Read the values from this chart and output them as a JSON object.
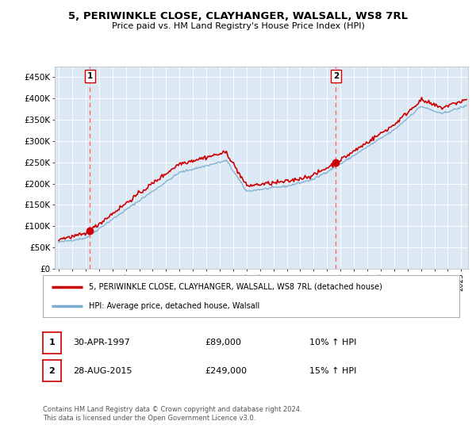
{
  "title": "5, PERIWINKLE CLOSE, CLAYHANGER, WALSALL, WS8 7RL",
  "subtitle": "Price paid vs. HM Land Registry's House Price Index (HPI)",
  "ylim": [
    0,
    475000
  ],
  "yticks": [
    0,
    50000,
    100000,
    150000,
    200000,
    250000,
    300000,
    350000,
    400000,
    450000
  ],
  "ytick_labels": [
    "£0",
    "£50K",
    "£100K",
    "£150K",
    "£200K",
    "£250K",
    "£300K",
    "£350K",
    "£400K",
    "£450K"
  ],
  "xlim_start": 1994.7,
  "xlim_end": 2025.5,
  "plot_bg_color": "#dce9f5",
  "red_line_color": "#cc0000",
  "blue_line_color": "#7aadcf",
  "marker_color": "#cc0000",
  "dashed_line_color": "#ff6666",
  "sale1_x": 1997.33,
  "sale1_y": 89000,
  "sale1_label": "1",
  "sale2_x": 2015.66,
  "sale2_y": 249000,
  "sale2_label": "2",
  "legend_line1": "5, PERIWINKLE CLOSE, CLAYHANGER, WALSALL, WS8 7RL (detached house)",
  "legend_line2": "HPI: Average price, detached house, Walsall",
  "table_row1_num": "1",
  "table_row1_date": "30-APR-1997",
  "table_row1_price": "£89,000",
  "table_row1_hpi": "10% ↑ HPI",
  "table_row2_num": "2",
  "table_row2_date": "28-AUG-2015",
  "table_row2_price": "£249,000",
  "table_row2_hpi": "15% ↑ HPI",
  "footer": "Contains HM Land Registry data © Crown copyright and database right 2024.\nThis data is licensed under the Open Government Licence v3.0."
}
